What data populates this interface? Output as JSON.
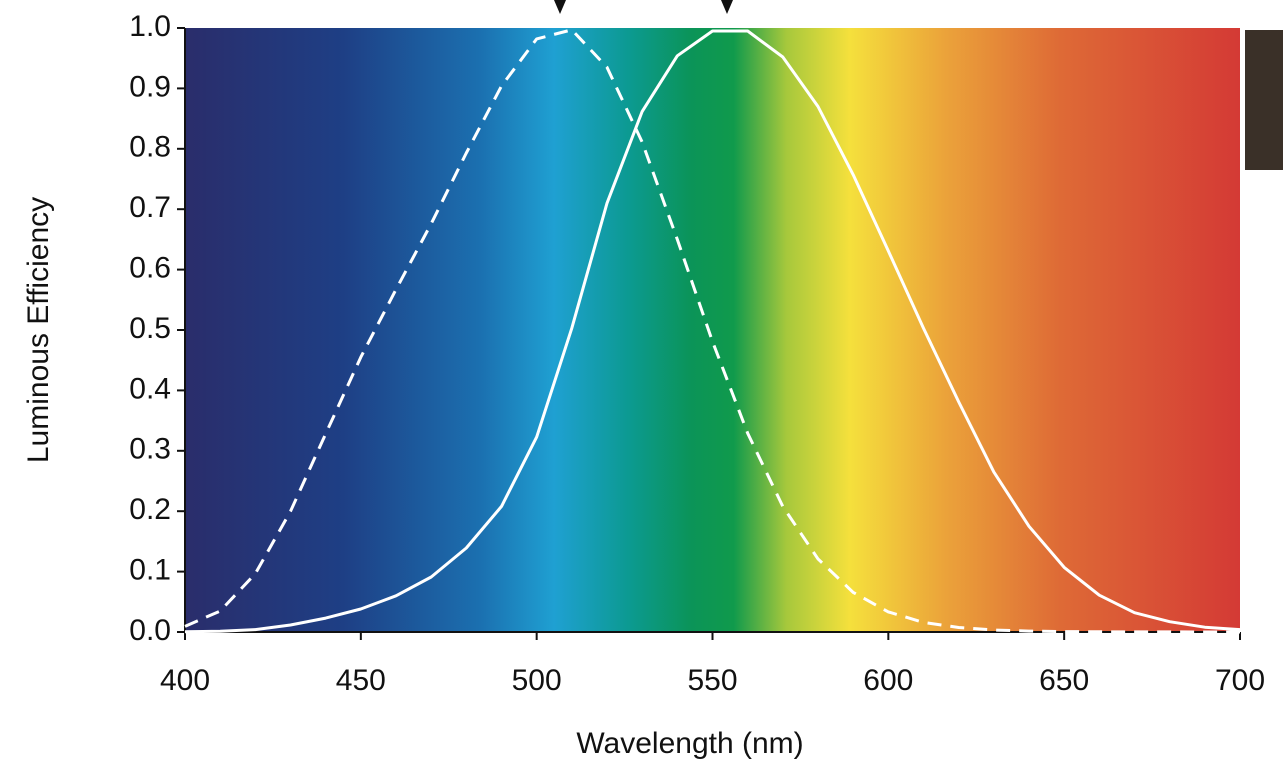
{
  "chart_data": {
    "type": "line",
    "x_label": "Wavelength (nm)",
    "y_label": "Luminous Efficiency",
    "x": [
      400,
      410,
      420,
      430,
      440,
      450,
      460,
      470,
      480,
      490,
      500,
      510,
      520,
      530,
      540,
      550,
      560,
      570,
      580,
      590,
      600,
      610,
      620,
      630,
      640,
      650,
      660,
      670,
      680,
      690,
      700
    ],
    "series": [
      {
        "color": "#ffffff",
        "dashed": true,
        "values": [
          0.0093,
          0.0348,
          0.0966,
          0.1998,
          0.3281,
          0.455,
          0.567,
          0.676,
          0.793,
          0.904,
          0.982,
          0.997,
          0.935,
          0.811,
          0.65,
          0.481,
          0.329,
          0.208,
          0.121,
          0.0655,
          0.0332,
          0.0159,
          0.0074,
          0.0033,
          0.0015,
          0.0007,
          0.0003,
          0.0001,
          0.0001,
          0,
          0
        ]
      },
      {
        "color": "#ffffff",
        "dashed": false,
        "values": [
          0.0004,
          0.0012,
          0.004,
          0.0116,
          0.023,
          0.038,
          0.06,
          0.091,
          0.139,
          0.208,
          0.323,
          0.503,
          0.71,
          0.862,
          0.954,
          0.995,
          0.995,
          0.952,
          0.87,
          0.757,
          0.631,
          0.503,
          0.381,
          0.265,
          0.175,
          0.107,
          0.061,
          0.032,
          0.017,
          0.008,
          0.004
        ]
      }
    ],
    "xlim": [
      400,
      700
    ],
    "xticks": [
      400,
      450,
      500,
      550,
      600,
      650,
      700
    ],
    "ylim": [
      0,
      1
    ],
    "yticks": [
      {
        "value": 0,
        "label": "0.0"
      },
      0.1,
      0.2,
      0.3,
      0.4,
      0.5,
      0.6,
      0.7,
      0.8,
      0.9,
      {
        "value": 1,
        "label": "1.0"
      }
    ],
    "grid": false
  }
}
